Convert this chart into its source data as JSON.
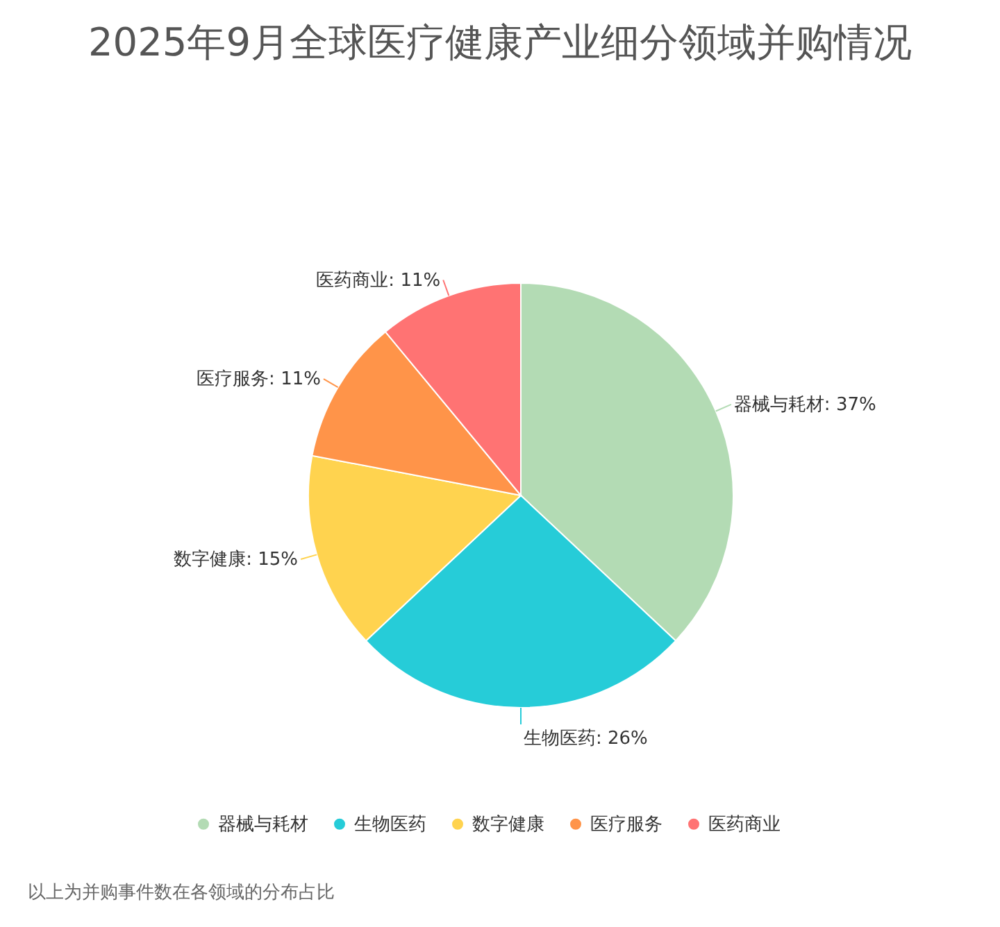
{
  "chart_data": {
    "type": "pie",
    "title": "2025年9月全球医疗健康产业细分领域并购情况",
    "categories": [
      "器械与耗材",
      "生物医药",
      "数字健康",
      "医疗服务",
      "医药商业"
    ],
    "values": [
      37,
      26,
      15,
      11,
      11
    ],
    "value_labels": [
      "器械与耗材: 37%",
      "生物医药: 26%",
      "数字健康: 15%",
      "医疗服务: 11%",
      "医药商业: 11%"
    ],
    "colors": [
      "#b3dbb4",
      "#26ccd8",
      "#ffd34f",
      "#ff9449",
      "#ff7373"
    ],
    "legend": "bottom",
    "annotations": [
      "以上为并购事件数在各领域的分布占比"
    ]
  }
}
